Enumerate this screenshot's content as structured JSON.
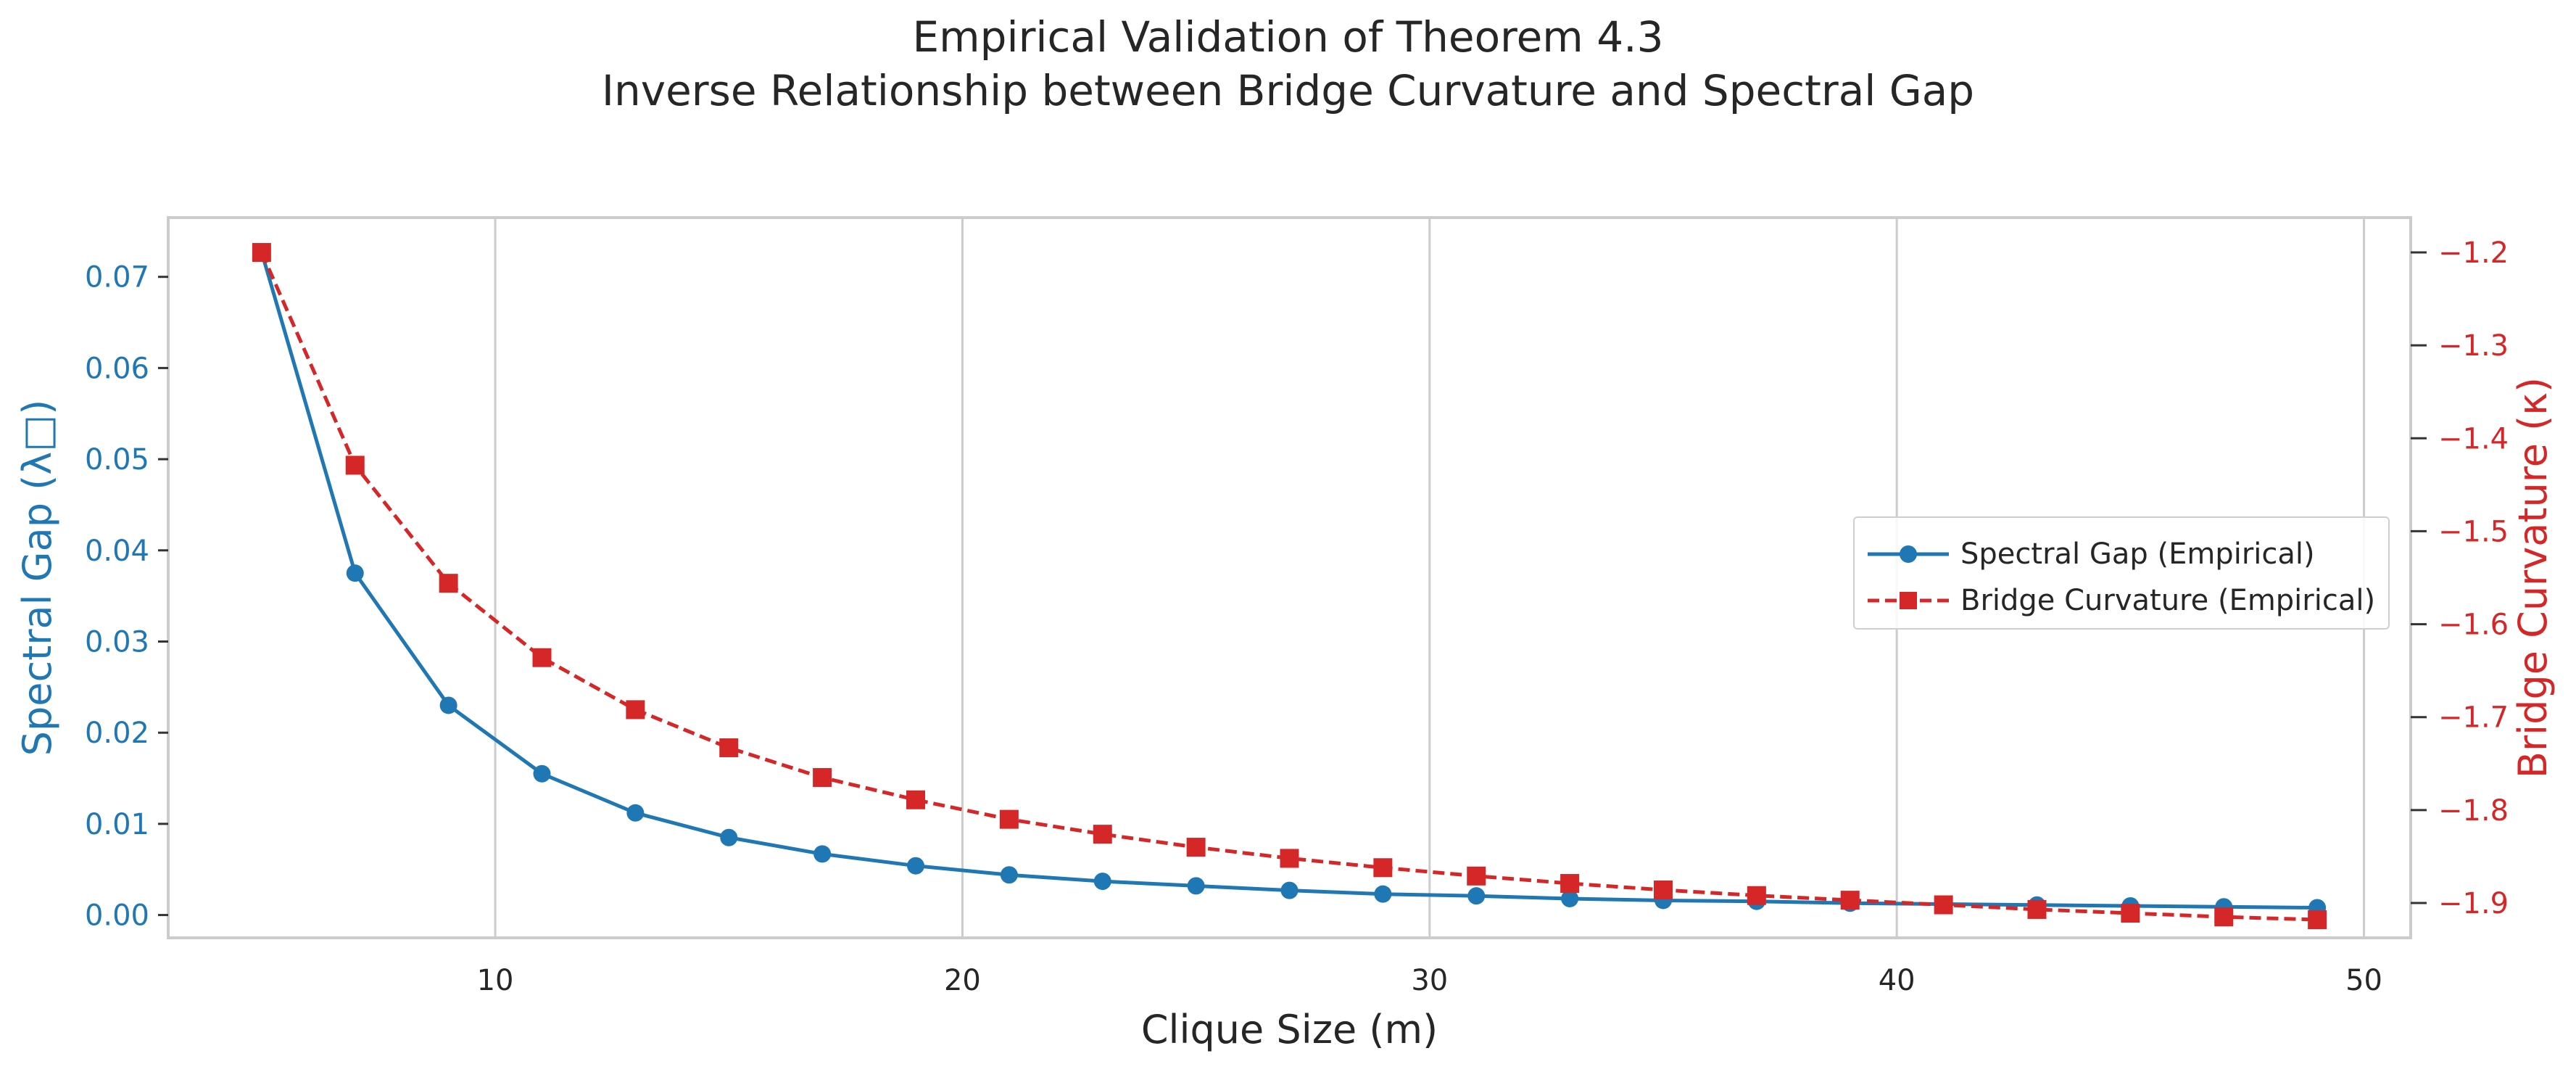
{
  "title": {
    "line1": "Empirical Validation of Theorem 4.3",
    "line2": "Inverse Relationship between Bridge Curvature and Spectral Gap"
  },
  "colors": {
    "spectral": "#1f77b4",
    "curvature": "#d62728",
    "grid": "#cccccc",
    "frame": "#cccccc",
    "text": "#262626"
  },
  "chart_data": {
    "type": "line",
    "xlabel": "Clique Size (m)",
    "xlim": [
      3,
      51
    ],
    "xticks": [
      10,
      20,
      30,
      40,
      50
    ],
    "grid": "vertical",
    "legend_position": "center-right",
    "x": [
      5,
      7,
      9,
      11,
      13,
      15,
      17,
      19,
      21,
      23,
      25,
      27,
      29,
      31,
      33,
      35,
      37,
      39,
      41,
      43,
      45,
      47,
      49
    ],
    "left_axis": {
      "label": "Spectral Gap (λ□)",
      "ylim": [
        -0.0025,
        0.0765
      ],
      "ticks": [
        "0.00",
        "0.01",
        "0.02",
        "0.03",
        "0.04",
        "0.05",
        "0.06",
        "0.07"
      ]
    },
    "right_axis": {
      "label": "Bridge Curvature (κ)",
      "ylim": [
        -1.9375,
        -1.1625
      ],
      "ticks": [
        "−1.2",
        "−1.3",
        "−1.4",
        "−1.5",
        "−1.6",
        "−1.7",
        "−1.8",
        "−1.9"
      ]
    },
    "series": [
      {
        "name": "Spectral Gap (Empirical)",
        "axis": "left",
        "marker": "circle",
        "linestyle": "solid",
        "values": [
          0.0727,
          0.0375,
          0.023,
          0.0155,
          0.0112,
          0.0085,
          0.0067,
          0.0054,
          0.0044,
          0.0037,
          0.0032,
          0.0027,
          0.0023,
          0.0021,
          0.0018,
          0.0016,
          0.0015,
          0.0013,
          0.0012,
          0.0011,
          0.001,
          0.0009,
          0.0008
        ]
      },
      {
        "name": "Bridge Curvature (Empirical)",
        "axis": "right",
        "marker": "square",
        "linestyle": "dashed",
        "values": [
          -1.2,
          -1.429,
          -1.556,
          -1.636,
          -1.692,
          -1.733,
          -1.765,
          -1.789,
          -1.81,
          -1.826,
          -1.84,
          -1.852,
          -1.862,
          -1.871,
          -1.879,
          -1.886,
          -1.892,
          -1.897,
          -1.902,
          -1.907,
          -1.911,
          -1.915,
          -1.918
        ]
      }
    ]
  }
}
